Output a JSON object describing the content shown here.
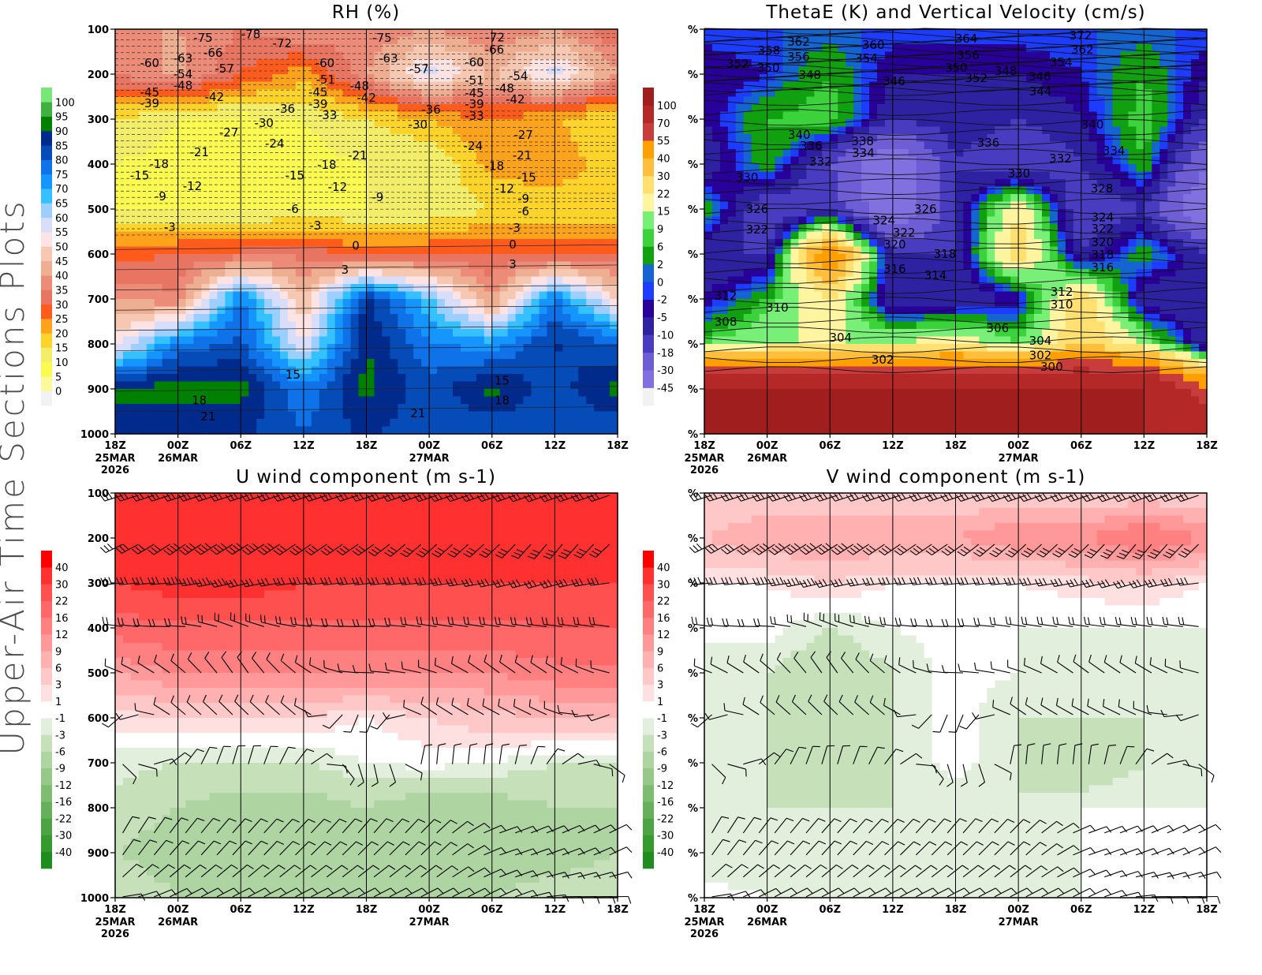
{
  "side_label": "Upper-Air Time Sections Plots",
  "time_ticks": [
    "18Z",
    "00Z",
    "06Z",
    "12Z",
    "18Z",
    "00Z",
    "06Z",
    "12Z",
    "18Z"
  ],
  "date_labels": [
    {
      "tick": 0,
      "lines": [
        "25MAR",
        "2026"
      ]
    },
    {
      "tick": 1,
      "lines": [
        "26MAR"
      ]
    },
    {
      "tick": 5,
      "lines": [
        "27MAR"
      ]
    }
  ],
  "pressure_levels": [
    100,
    200,
    300,
    400,
    500,
    600,
    700,
    800,
    900,
    1000
  ],
  "chart_data": [
    {
      "type": "heatmap",
      "title": "RH (%)",
      "y_tick_labels": [
        "100",
        "200",
        "300",
        "400",
        "500",
        "600",
        "700",
        "800",
        "900",
        "1000"
      ],
      "ylim": [
        1000,
        100
      ],
      "colorbar": {
        "levels": [
          "0",
          "5",
          "10",
          "15",
          "20",
          "25",
          "30",
          "35",
          "40",
          "45",
          "50",
          "55",
          "60",
          "65",
          "70",
          "75",
          "80",
          "85",
          "90",
          "95",
          "100"
        ],
        "colors": [
          "#f2f2f2",
          "#fafa9c",
          "#fafa50",
          "#f2ee6a",
          "#ffd42a",
          "#ffa21c",
          "#ff5b1c",
          "#e87562",
          "#ec8c78",
          "#eeae92",
          "#f6c8b2",
          "#fde3e3",
          "#d8def9",
          "#9ccfff",
          "#35c1ff",
          "#1596ff",
          "#0f72e8",
          "#064cb8",
          "#002a8c",
          "#008000",
          "#40b040",
          "#78e678"
        ]
      },
      "field": [
        [
          40,
          40,
          35,
          40,
          35,
          40,
          35,
          40,
          30
        ],
        [
          35,
          42,
          30,
          22,
          40,
          58,
          45,
          58,
          40
        ],
        [
          15,
          10,
          8,
          10,
          15,
          20,
          25,
          20,
          15
        ],
        [
          10,
          8,
          5,
          8,
          10,
          10,
          22,
          25,
          15
        ],
        [
          10,
          10,
          8,
          10,
          10,
          10,
          15,
          15,
          15
        ],
        [
          28,
          30,
          32,
          34,
          28,
          30,
          30,
          30,
          30
        ],
        [
          40,
          36,
          76,
          45,
          86,
          66,
          40,
          76,
          50
        ],
        [
          52,
          76,
          82,
          55,
          90,
          76,
          72,
          86,
          80
        ],
        [
          92,
          92,
          92,
          76,
          92,
          82,
          92,
          82,
          92
        ],
        [
          86,
          86,
          86,
          80,
          86,
          80,
          80,
          80,
          80
        ]
      ],
      "contour_labels": [
        [
          "-75",
          1.4,
          119
        ],
        [
          "-78",
          2.16,
          111
        ],
        [
          "-72",
          2.66,
          132
        ],
        [
          "-75",
          4.25,
          119
        ],
        [
          "-72",
          6.05,
          118
        ],
        [
          "-66",
          6.04,
          146
        ],
        [
          "-60",
          0.55,
          175
        ],
        [
          "-63",
          1.08,
          165
        ],
        [
          "-66",
          1.56,
          153
        ],
        [
          "-57",
          1.74,
          188
        ],
        [
          "-54",
          1.08,
          200
        ],
        [
          "-48",
          1.08,
          225
        ],
        [
          "-45",
          0.55,
          240
        ],
        [
          "-39",
          0.55,
          265
        ],
        [
          "-42",
          1.58,
          251
        ],
        [
          "-60",
          3.34,
          175
        ],
        [
          "-63",
          4.35,
          165
        ],
        [
          "-57",
          4.84,
          189
        ],
        [
          "-60",
          5.72,
          174
        ],
        [
          "-54",
          6.42,
          204
        ],
        [
          "-51",
          3.35,
          212
        ],
        [
          "-48",
          3.89,
          226
        ],
        [
          "-51",
          5.72,
          214
        ],
        [
          "-48",
          6.2,
          232
        ],
        [
          "-45",
          3.23,
          240
        ],
        [
          "-42",
          4.0,
          253
        ],
        [
          "-45",
          5.72,
          242
        ],
        [
          "-42",
          6.37,
          256
        ],
        [
          "-39",
          3.23,
          267
        ],
        [
          "-36",
          2.71,
          277
        ],
        [
          "-33",
          3.38,
          291
        ],
        [
          "-36",
          5.03,
          279
        ],
        [
          "-39",
          5.72,
          267
        ],
        [
          "-33",
          5.72,
          293
        ],
        [
          "-30",
          2.37,
          309
        ],
        [
          "-30",
          4.82,
          312
        ],
        [
          "-27",
          1.81,
          330
        ],
        [
          "-27",
          6.5,
          335
        ],
        [
          "-24",
          2.54,
          354
        ],
        [
          "-24",
          5.7,
          360
        ],
        [
          "-21",
          1.34,
          374
        ],
        [
          "-21",
          3.86,
          381
        ],
        [
          "-21",
          6.48,
          381
        ],
        [
          "-18",
          0.7,
          400
        ],
        [
          "-18",
          3.37,
          402
        ],
        [
          "-18",
          6.04,
          404
        ],
        [
          "-15",
          0.39,
          425
        ],
        [
          "-15",
          2.86,
          425
        ],
        [
          "-15",
          6.55,
          430
        ],
        [
          "-12",
          1.23,
          449
        ],
        [
          "-12",
          3.54,
          451
        ],
        [
          "-12",
          6.2,
          454
        ],
        [
          "-9",
          0.72,
          472
        ],
        [
          "-9",
          4.18,
          474
        ],
        [
          "-9",
          6.5,
          477
        ],
        [
          "-6",
          2.83,
          500
        ],
        [
          "-6",
          6.5,
          505
        ],
        [
          "-3",
          0.87,
          540
        ],
        [
          "-3",
          3.19,
          537
        ],
        [
          "-3",
          6.36,
          542
        ],
        [
          "0",
          3.83,
          582
        ],
        [
          "0",
          6.33,
          579
        ],
        [
          "3",
          3.66,
          635
        ],
        [
          "3",
          6.33,
          623
        ],
        [
          "15",
          2.83,
          868
        ],
        [
          "15",
          6.16,
          882
        ],
        [
          "18",
          1.34,
          925
        ],
        [
          "18",
          6.16,
          925
        ],
        [
          "21",
          1.48,
          961
        ],
        [
          "21",
          4.82,
          954
        ]
      ]
    },
    {
      "type": "heatmap",
      "title": "ThetaE (K) and Vertical Velocity (cm/s)",
      "y_tick_labels": [
        "%",
        "%",
        "%",
        "%",
        "%",
        "%",
        "%",
        "%",
        "%",
        "%"
      ],
      "ylim": [
        1000,
        100
      ],
      "colorbar": {
        "levels": [
          "-45",
          "-30",
          "-18",
          "-10",
          "-5",
          "-2",
          "0",
          "2",
          "6",
          "9",
          "15",
          "22",
          "30",
          "40",
          "55",
          "70",
          "100"
        ],
        "colors": [
          "#f2f2f2",
          "#8070e0",
          "#6e5ed6",
          "#4a3cc0",
          "#2e22a2",
          "#28009a",
          "#1c3cff",
          "#1464d2",
          "#10a010",
          "#3cd23c",
          "#78f078",
          "#fff5a0",
          "#ffe070",
          "#ffbe3c",
          "#ffa000",
          "#c83c3c",
          "#b42828",
          "#a01e1e"
        ]
      },
      "field": [
        [
          0,
          0,
          0,
          0,
          0,
          0,
          0,
          0,
          0
        ],
        [
          -5,
          -2,
          6,
          -5,
          -5,
          -5,
          -2,
          6,
          -5
        ],
        [
          -5,
          6,
          9,
          -10,
          -5,
          -10,
          -5,
          9,
          -10
        ],
        [
          -10,
          6,
          -18,
          -45,
          -10,
          -18,
          -10,
          6,
          -30
        ],
        [
          6,
          -18,
          -10,
          -45,
          -10,
          22,
          -18,
          -10,
          -45
        ],
        [
          -10,
          -10,
          55,
          -10,
          -10,
          30,
          -10,
          6,
          -10
        ],
        [
          -5,
          6,
          22,
          -10,
          -10,
          -5,
          30,
          -10,
          -10
        ],
        [
          9,
          15,
          15,
          15,
          22,
          9,
          30,
          15,
          -10
        ],
        [
          100,
          100,
          100,
          100,
          100,
          100,
          100,
          100,
          55
        ],
        [
          100,
          100,
          100,
          100,
          100,
          100,
          100,
          100,
          100
        ]
      ],
      "contour_labels": [
        [
          "362",
          1.5,
          128
        ],
        [
          "364",
          4.17,
          121
        ],
        [
          "372",
          5.99,
          114
        ],
        [
          "358",
          1.03,
          147
        ],
        [
          "356",
          1.5,
          161
        ],
        [
          "360",
          2.69,
          135
        ],
        [
          "354",
          2.58,
          165
        ],
        [
          "356",
          4.2,
          158
        ],
        [
          "362",
          6.02,
          146
        ],
        [
          "352",
          0.53,
          177
        ],
        [
          "350",
          1.02,
          186
        ],
        [
          "348",
          1.68,
          202
        ],
        [
          "350",
          4.01,
          186
        ],
        [
          "352",
          4.33,
          174
        ],
        [
          "348",
          4.8,
          193
        ],
        [
          "354",
          5.68,
          174
        ],
        [
          "346",
          3.02,
          216
        ],
        [
          "346",
          5.34,
          205
        ],
        [
          "344",
          5.35,
          239
        ],
        [
          "340",
          1.51,
          335
        ],
        [
          "340",
          6.18,
          312
        ],
        [
          "338",
          2.52,
          349
        ],
        [
          "336",
          1.7,
          360
        ],
        [
          "334",
          2.53,
          375
        ],
        [
          "336",
          4.52,
          353
        ],
        [
          "334",
          6.52,
          370
        ],
        [
          "332",
          1.85,
          395
        ],
        [
          "332",
          5.67,
          388
        ],
        [
          "330",
          0.68,
          430
        ],
        [
          "330",
          5.01,
          421
        ],
        [
          "328",
          6.33,
          454
        ],
        [
          "326",
          0.84,
          500
        ],
        [
          "326",
          3.52,
          500
        ],
        [
          "324",
          2.86,
          525
        ],
        [
          "324",
          6.34,
          518
        ],
        [
          "322",
          0.84,
          546
        ],
        [
          "322",
          3.18,
          553
        ],
        [
          "322",
          6.34,
          544
        ],
        [
          "320",
          3.03,
          579
        ],
        [
          "320",
          6.34,
          574
        ],
        [
          "318",
          3.83,
          600
        ],
        [
          "318",
          6.34,
          602
        ],
        [
          "316",
          3.03,
          633
        ],
        [
          "316",
          6.34,
          630
        ],
        [
          "314",
          3.68,
          647
        ],
        [
          "312",
          0.34,
          693
        ],
        [
          "312",
          5.69,
          684
        ],
        [
          "310",
          1.16,
          719
        ],
        [
          "310",
          5.69,
          712
        ],
        [
          "308",
          0.34,
          751
        ],
        [
          "306",
          4.67,
          765
        ],
        [
          "304",
          2.17,
          786
        ],
        [
          "304",
          5.35,
          793
        ],
        [
          "302",
          2.84,
          835
        ],
        [
          "302",
          5.35,
          825
        ],
        [
          "300",
          5.53,
          851
        ]
      ]
    },
    {
      "type": "heatmap",
      "title": "U wind component (m s-1)",
      "y_tick_labels": [
        "100",
        "200",
        "300",
        "400",
        "500",
        "600",
        "700",
        "800",
        "900",
        "1000"
      ],
      "ylim": [
        1000,
        100
      ],
      "colorbar": {
        "levels": [
          "-40",
          "-30",
          "-22",
          "-16",
          "-12",
          "-9",
          "-6",
          "-3",
          "-1",
          "1",
          "3",
          "6",
          "9",
          "12",
          "16",
          "22",
          "30",
          "40"
        ],
        "colors": [
          "#1e8c1e",
          "#369a2e",
          "#4ea444",
          "#66b05c",
          "#7ebc72",
          "#96c88a",
          "#aed4a2",
          "#c6e0ba",
          "#e2efdd",
          "#ffffff",
          "#ffe0e0",
          "#ffc8c8",
          "#ffb0b0",
          "#ff9898",
          "#ff8080",
          "#ff6868",
          "#ff5050",
          "#ff3030",
          "#ff0000"
        ]
      },
      "field": [
        [
          30,
          30,
          30,
          30,
          30,
          30,
          30,
          30,
          30
        ],
        [
          35,
          35,
          40,
          35,
          35,
          35,
          35,
          35,
          35
        ],
        [
          30,
          35,
          35,
          30,
          30,
          30,
          30,
          30,
          30
        ],
        [
          18,
          20,
          20,
          20,
          20,
          20,
          20,
          22,
          22
        ],
        [
          9,
          12,
          12,
          12,
          12,
          12,
          12,
          14,
          14
        ],
        [
          2,
          3,
          3,
          3,
          1,
          3,
          5,
          6,
          6
        ],
        [
          -2,
          -3,
          -3,
          -3,
          -1,
          0,
          -1,
          -3,
          -3
        ],
        [
          -4,
          -6,
          -8,
          -8,
          -6,
          -9,
          -8,
          -6,
          -6
        ],
        [
          -6,
          -8,
          -8,
          -9,
          -9,
          -9,
          -9,
          -8,
          -6
        ],
        [
          -3,
          -6,
          -6,
          -6,
          -6,
          -6,
          -6,
          -4,
          -4
        ]
      ]
    },
    {
      "type": "heatmap",
      "title": "V wind component (m s-1)",
      "y_tick_labels": [
        "%",
        "%",
        "%",
        "%",
        "%",
        "%",
        "%",
        "%",
        "%",
        "%"
      ],
      "ylim": [
        1000,
        100
      ],
      "colorbar": {
        "levels": [
          "-40",
          "-30",
          "-22",
          "-16",
          "-12",
          "-9",
          "-6",
          "-3",
          "-1",
          "1",
          "3",
          "6",
          "9",
          "12",
          "16",
          "22",
          "30",
          "40"
        ],
        "colors": [
          "#1e8c1e",
          "#369a2e",
          "#4ea444",
          "#66b05c",
          "#7ebc72",
          "#96c88a",
          "#aed4a2",
          "#c6e0ba",
          "#e2efdd",
          "#ffffff",
          "#ffe0e0",
          "#ffc8c8",
          "#ffb0b0",
          "#ff9898",
          "#ff8080",
          "#ff6868",
          "#ff5050",
          "#ff3030",
          "#ff0000"
        ]
      },
      "field": [
        [
          3,
          3,
          3,
          3,
          3,
          3,
          3,
          3,
          3
        ],
        [
          6,
          9,
          9,
          9,
          9,
          12,
          12,
          16,
          12
        ],
        [
          1,
          1,
          3,
          1,
          1,
          1,
          2,
          3,
          1
        ],
        [
          -1,
          0,
          -3,
          -1,
          0,
          -1,
          -1,
          -1,
          -1
        ],
        [
          -1,
          -3,
          -6,
          -3,
          0,
          -1,
          -3,
          -3,
          -1
        ],
        [
          -1,
          -3,
          -3,
          -3,
          0,
          -3,
          -3,
          -3,
          -1
        ],
        [
          -1,
          -3,
          -6,
          -3,
          0,
          -3,
          -6,
          -3,
          -1
        ],
        [
          -3,
          -3,
          -3,
          -3,
          -3,
          -3,
          -1,
          -1,
          -1
        ],
        [
          -3,
          -3,
          -3,
          -3,
          -3,
          -3,
          -1,
          -1,
          -1
        ],
        [
          0,
          -1,
          -1,
          -1,
          -1,
          -1,
          -1,
          0,
          0
        ]
      ]
    }
  ]
}
